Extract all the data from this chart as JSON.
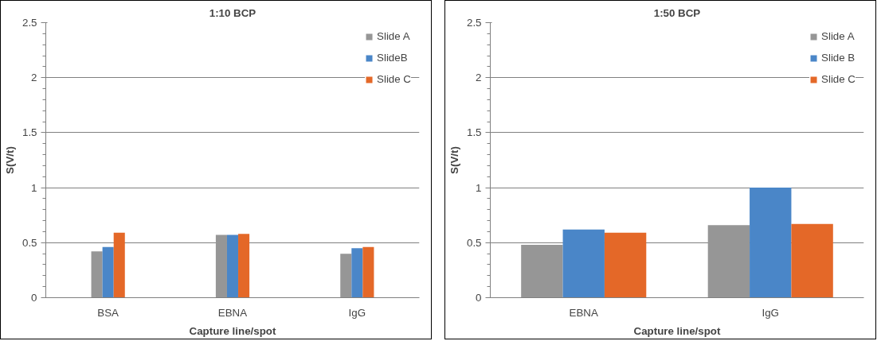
{
  "chart_data": [
    {
      "type": "bar",
      "title": "1:10 BCP",
      "xlabel": "Capture line/spot",
      "ylabel": "S(V/t)",
      "categories": [
        "BSA",
        "EBNA",
        "IgG"
      ],
      "series": [
        {
          "name": "Slide A",
          "color": "#969696",
          "values": [
            0.42,
            0.57,
            0.4
          ]
        },
        {
          "name": "SlideB",
          "color": "#4a86c8",
          "values": [
            0.46,
            0.57,
            0.45
          ]
        },
        {
          "name": "Slide C",
          "color": "#e46828",
          "values": [
            0.59,
            0.58,
            0.46
          ]
        }
      ],
      "ylim": [
        0,
        2.5
      ],
      "yticks": [
        0,
        0.5,
        1,
        1.5,
        2,
        2.5
      ],
      "grid": "y",
      "legend": "top right"
    },
    {
      "type": "bar",
      "title": "1:50 BCP",
      "xlabel": "Capture line/spot",
      "ylabel": "S(V/t)",
      "categories": [
        "EBNA",
        "IgG"
      ],
      "series": [
        {
          "name": "Slide A",
          "color": "#969696",
          "values": [
            0.48,
            0.66
          ]
        },
        {
          "name": "Slide B",
          "color": "#4a86c8",
          "values": [
            0.62,
            1.0
          ]
        },
        {
          "name": "Slide C",
          "color": "#e46828",
          "values": [
            0.59,
            0.67
          ]
        }
      ],
      "ylim": [
        0,
        2.5
      ],
      "yticks": [
        0,
        0.5,
        1,
        1.5,
        2,
        2.5
      ],
      "grid": "y",
      "legend": "top right"
    }
  ]
}
